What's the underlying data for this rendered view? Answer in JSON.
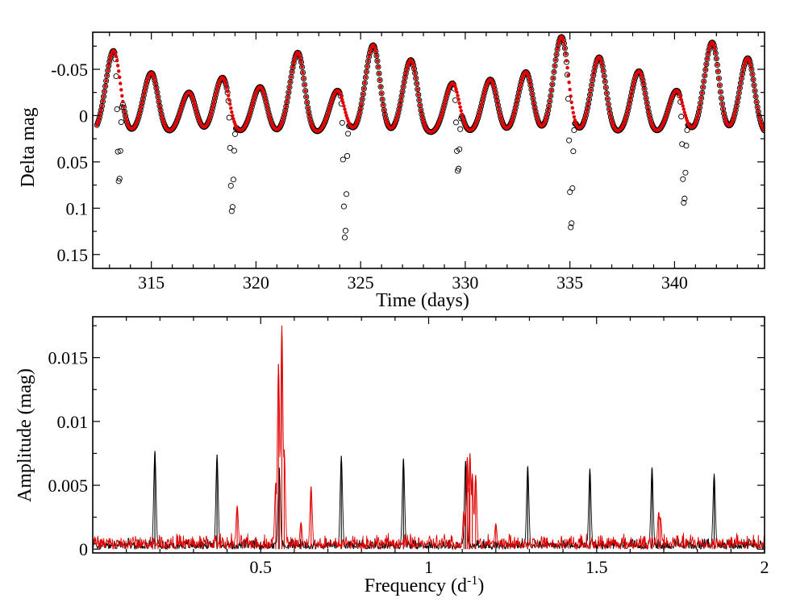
{
  "colors": {
    "observed": "#000000",
    "model": "#e00000",
    "background": "#ffffff"
  },
  "chart_data": [
    {
      "type": "scatter",
      "title": "",
      "xlabel": "Time (days)",
      "ylabel": "Delta mag",
      "xlim": [
        312.2,
        344.3
      ],
      "ylim": [
        -0.09,
        0.165
      ],
      "y_inverted": true,
      "x_ticks": [
        315,
        320,
        325,
        330,
        335,
        340
      ],
      "x_tick_labels": [
        "315",
        "320",
        "325",
        "330",
        "335",
        "340"
      ],
      "y_ticks": [
        -0.05,
        0,
        0.05,
        0.1,
        0.15
      ],
      "y_tick_labels": [
        "-0.05",
        "0",
        "0.05",
        "0.1",
        "0.15"
      ],
      "series": [
        {
          "name": "observed",
          "style": "open-circles",
          "color": "#000000",
          "baseline": 0.02,
          "peaks": [
            {
              "t": 313.2,
              "amp": -0.07
            },
            {
              "t": 315.0,
              "amp": -0.046
            },
            {
              "t": 316.8,
              "amp": -0.025
            },
            {
              "t": 318.4,
              "amp": -0.041
            },
            {
              "t": 320.2,
              "amp": -0.031
            },
            {
              "t": 322.0,
              "amp": -0.068
            },
            {
              "t": 323.9,
              "amp": -0.027
            },
            {
              "t": 325.6,
              "amp": -0.076
            },
            {
              "t": 327.4,
              "amp": -0.06
            },
            {
              "t": 329.4,
              "amp": -0.035
            },
            {
              "t": 331.2,
              "amp": -0.039
            },
            {
              "t": 332.9,
              "amp": -0.047
            },
            {
              "t": 334.6,
              "amp": -0.085
            },
            {
              "t": 336.4,
              "amp": -0.063
            },
            {
              "t": 338.3,
              "amp": -0.048
            },
            {
              "t": 340.1,
              "amp": -0.027
            },
            {
              "t": 341.8,
              "amp": -0.079
            },
            {
              "t": 343.5,
              "amp": -0.062
            }
          ],
          "eclipses": [
            {
              "t": 313.45,
              "depth": 0.12
            },
            {
              "t": 318.85,
              "depth": 0.108
            },
            {
              "t": 324.25,
              "depth": 0.14
            },
            {
              "t": 329.65,
              "depth": 0.082
            },
            {
              "t": 335.05,
              "depth": 0.143
            },
            {
              "t": 340.45,
              "depth": 0.102
            }
          ]
        },
        {
          "name": "model",
          "style": "filled-dots",
          "color": "#e00000"
        }
      ]
    },
    {
      "type": "line",
      "title": "",
      "xlabel": "Frequency (d",
      "xlabel_sup": "-1",
      "xlabel_close": ")",
      "ylabel": "Amplitude (mag)",
      "xlim": [
        0,
        2
      ],
      "ylim": [
        -0.0003,
        0.0182
      ],
      "x_ticks": [
        0.5,
        1,
        1.5,
        2
      ],
      "x_tick_labels": [
        "0.5",
        "1",
        "1.5",
        "2"
      ],
      "y_ticks": [
        0,
        0.005,
        0.01,
        0.015
      ],
      "y_tick_labels": [
        "0",
        "0.005",
        "0.01",
        "0.015"
      ],
      "series": [
        {
          "name": "observed",
          "color": "#000000",
          "noise": 0.0006,
          "peaks": [
            {
              "f": 0.185,
              "a": 0.0077
            },
            {
              "f": 0.37,
              "a": 0.0074
            },
            {
              "f": 0.555,
              "a": 0.0064
            },
            {
              "f": 0.74,
              "a": 0.0073
            },
            {
              "f": 0.925,
              "a": 0.0071
            },
            {
              "f": 1.11,
              "a": 0.0069
            },
            {
              "f": 1.295,
              "a": 0.0065
            },
            {
              "f": 1.48,
              "a": 0.0063
            },
            {
              "f": 1.665,
              "a": 0.0064
            },
            {
              "f": 1.85,
              "a": 0.0059
            }
          ]
        },
        {
          "name": "model",
          "color": "#e00000",
          "noise": 0.0009,
          "peaks": [
            {
              "f": 0.553,
              "a": 0.0145
            },
            {
              "f": 0.563,
              "a": 0.0175
            },
            {
              "f": 0.545,
              "a": 0.0052
            },
            {
              "f": 0.57,
              "a": 0.0078
            },
            {
              "f": 0.65,
              "a": 0.0049
            },
            {
              "f": 0.43,
              "a": 0.0034
            },
            {
              "f": 0.62,
              "a": 0.0021
            },
            {
              "f": 1.115,
              "a": 0.0072
            },
            {
              "f": 1.123,
              "a": 0.0075
            },
            {
              "f": 1.13,
              "a": 0.0059
            },
            {
              "f": 1.14,
              "a": 0.0058
            },
            {
              "f": 1.105,
              "a": 0.003
            },
            {
              "f": 1.2,
              "a": 0.002
            },
            {
              "f": 1.685,
              "a": 0.0029
            },
            {
              "f": 1.69,
              "a": 0.0025
            },
            {
              "f": 1.12,
              "a": 0.0048
            }
          ]
        }
      ]
    }
  ]
}
